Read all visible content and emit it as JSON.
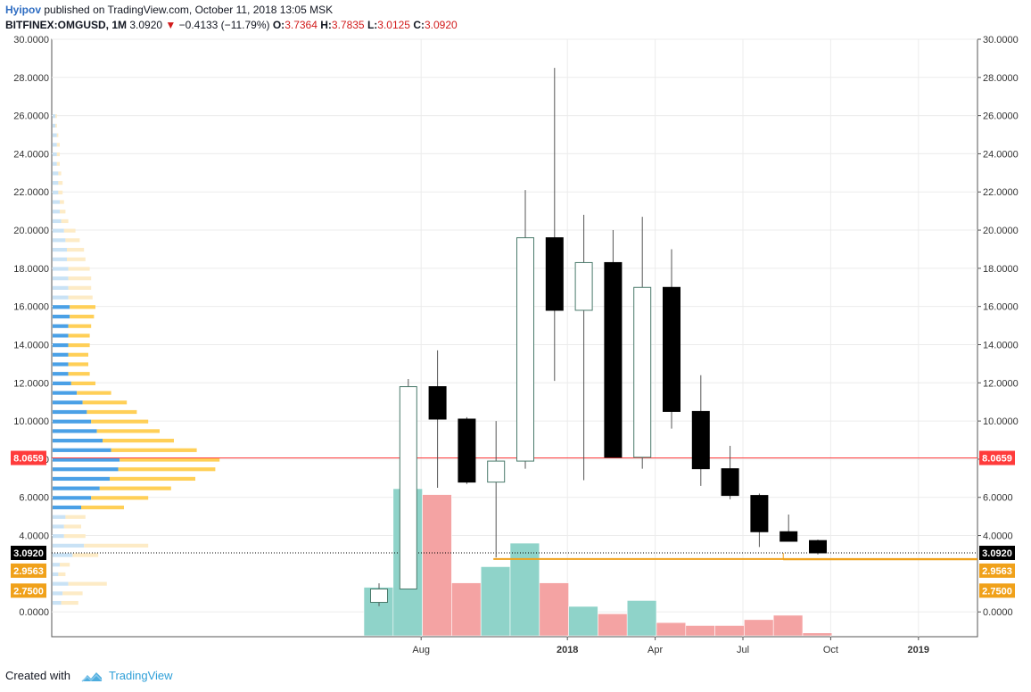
{
  "header": {
    "author": "Hyipov",
    "published": "published on TradingView.com, October 11, 2018 13:05 MSK",
    "symbol": "BITFINEX:OMGUSD, 1M",
    "last": "3.0920",
    "change": "−0.4133 (−11.79%)",
    "o_label": "O:",
    "o_value": "3.7364",
    "h_label": "H:",
    "h_value": "3.7835",
    "l_label": "L:",
    "l_value": "3.0125",
    "c_label": "C:",
    "c_value": "3.0920"
  },
  "footer": {
    "created": "Created with",
    "brand": "TradingView"
  },
  "colors": {
    "up_body": "#ffffff",
    "up_border": "#4a7a6b",
    "down_body": "#000000",
    "vol_up": "#8fd3c9",
    "vol_down": "#f4a3a3",
    "vp_blue": "#4aa0e6",
    "vp_light": "#c9e2f5",
    "vp_orange": "#ffcf57",
    "vp_light_orange": "#fdebc6",
    "poc": "#ff3b3b",
    "support": "#f0a11a",
    "last": "#000000"
  },
  "chart_data": {
    "type": "candlestick",
    "ylim": [
      -1.3,
      30
    ],
    "y_ticks": [
      "30.0000",
      "28.0000",
      "26.0000",
      "24.0000",
      "22.0000",
      "20.0000",
      "18.0000",
      "16.0000",
      "14.0000",
      "12.0000",
      "10.0000",
      "8.0000",
      "6.0000",
      "4.0000",
      "0.0000"
    ],
    "x_ticks": [
      {
        "label": "Aug",
        "bold": false,
        "index": 1
      },
      {
        "label": "2018",
        "bold": true,
        "index": 6
      },
      {
        "label": "Apr",
        "bold": false,
        "index": 9
      },
      {
        "label": "Jul",
        "bold": false,
        "index": 12
      },
      {
        "label": "Oct",
        "bold": false,
        "index": 15
      },
      {
        "label": "2019",
        "bold": true,
        "index": 18
      }
    ],
    "candles": [
      {
        "o": 0.5,
        "h": 1.5,
        "l": 0.3,
        "c": 1.2
      },
      {
        "o": 1.2,
        "h": 12.2,
        "l": 1.2,
        "c": 11.8
      },
      {
        "o": 11.8,
        "h": 13.7,
        "l": 6.5,
        "c": 10.1
      },
      {
        "o": 10.1,
        "h": 10.2,
        "l": 6.7,
        "c": 6.8
      },
      {
        "o": 6.8,
        "h": 10.0,
        "l": 2.85,
        "c": 7.9
      },
      {
        "o": 7.9,
        "h": 22.1,
        "l": 7.5,
        "c": 19.6
      },
      {
        "o": 19.6,
        "h": 28.5,
        "l": 12.1,
        "c": 15.8
      },
      {
        "o": 15.8,
        "h": 20.8,
        "l": 6.9,
        "c": 18.3
      },
      {
        "o": 18.3,
        "h": 20.0,
        "l": 8.1,
        "c": 8.1
      },
      {
        "o": 8.1,
        "h": 20.7,
        "l": 7.5,
        "c": 17.0
      },
      {
        "o": 17.0,
        "h": 19.0,
        "l": 9.6,
        "c": 10.5
      },
      {
        "o": 10.5,
        "h": 12.4,
        "l": 6.6,
        "c": 7.5
      },
      {
        "o": 7.5,
        "h": 8.7,
        "l": 5.9,
        "c": 6.1
      },
      {
        "o": 6.1,
        "h": 6.2,
        "l": 3.4,
        "c": 4.2
      },
      {
        "o": 4.2,
        "h": 5.1,
        "l": 3.7,
        "c": 3.7
      },
      {
        "o": 3.7364,
        "h": 3.7835,
        "l": 3.0125,
        "c": 3.092
      }
    ],
    "volume": [
      {
        "v": 0.33,
        "dir": "up"
      },
      {
        "v": 1.0,
        "dir": "up"
      },
      {
        "v": 0.96,
        "dir": "down"
      },
      {
        "v": 0.36,
        "dir": "down"
      },
      {
        "v": 0.47,
        "dir": "up"
      },
      {
        "v": 0.63,
        "dir": "up"
      },
      {
        "v": 0.36,
        "dir": "down"
      },
      {
        "v": 0.2,
        "dir": "up"
      },
      {
        "v": 0.15,
        "dir": "down"
      },
      {
        "v": 0.24,
        "dir": "up"
      },
      {
        "v": 0.09,
        "dir": "down"
      },
      {
        "v": 0.07,
        "dir": "down"
      },
      {
        "v": 0.07,
        "dir": "down"
      },
      {
        "v": 0.11,
        "dir": "down"
      },
      {
        "v": 0.14,
        "dir": "down"
      },
      {
        "v": 0.02,
        "dir": "down"
      }
    ],
    "levels": {
      "poc": {
        "value": 8.0659,
        "label": "8.0659"
      },
      "last": {
        "value": 3.092,
        "label": "3.0920"
      },
      "support_high": {
        "value": 2.9563,
        "label": "2.9563"
      },
      "support_low": {
        "value": 2.75,
        "label": "2.7500"
      }
    },
    "volume_profile": [
      {
        "p": 26.0,
        "a": 0.02,
        "b": 0.01,
        "hl": false
      },
      {
        "p": 25.5,
        "a": 0.02,
        "b": 0.01,
        "hl": false
      },
      {
        "p": 25.0,
        "a": 0.03,
        "b": 0.01,
        "hl": false
      },
      {
        "p": 24.5,
        "a": 0.03,
        "b": 0.02,
        "hl": false
      },
      {
        "p": 24.0,
        "a": 0.03,
        "b": 0.02,
        "hl": false
      },
      {
        "p": 23.5,
        "a": 0.03,
        "b": 0.02,
        "hl": false
      },
      {
        "p": 23.0,
        "a": 0.04,
        "b": 0.02,
        "hl": false
      },
      {
        "p": 22.5,
        "a": 0.04,
        "b": 0.03,
        "hl": false
      },
      {
        "p": 22.0,
        "a": 0.04,
        "b": 0.03,
        "hl": false
      },
      {
        "p": 21.5,
        "a": 0.05,
        "b": 0.03,
        "hl": false
      },
      {
        "p": 21.0,
        "a": 0.05,
        "b": 0.04,
        "hl": false
      },
      {
        "p": 20.5,
        "a": 0.06,
        "b": 0.05,
        "hl": false
      },
      {
        "p": 20.0,
        "a": 0.08,
        "b": 0.08,
        "hl": false
      },
      {
        "p": 19.5,
        "a": 0.09,
        "b": 0.1,
        "hl": false
      },
      {
        "p": 19.0,
        "a": 0.1,
        "b": 0.12,
        "hl": false
      },
      {
        "p": 18.5,
        "a": 0.1,
        "b": 0.13,
        "hl": false
      },
      {
        "p": 18.0,
        "a": 0.11,
        "b": 0.15,
        "hl": false
      },
      {
        "p": 17.5,
        "a": 0.11,
        "b": 0.16,
        "hl": false
      },
      {
        "p": 17.0,
        "a": 0.11,
        "b": 0.16,
        "hl": false
      },
      {
        "p": 16.5,
        "a": 0.11,
        "b": 0.17,
        "hl": false
      },
      {
        "p": 16.0,
        "a": 0.12,
        "b": 0.18,
        "hl": true
      },
      {
        "p": 15.5,
        "a": 0.12,
        "b": 0.17,
        "hl": true
      },
      {
        "p": 15.0,
        "a": 0.11,
        "b": 0.16,
        "hl": true
      },
      {
        "p": 14.5,
        "a": 0.11,
        "b": 0.15,
        "hl": true
      },
      {
        "p": 14.0,
        "a": 0.11,
        "b": 0.15,
        "hl": true
      },
      {
        "p": 13.5,
        "a": 0.11,
        "b": 0.14,
        "hl": true
      },
      {
        "p": 13.0,
        "a": 0.11,
        "b": 0.14,
        "hl": true
      },
      {
        "p": 12.5,
        "a": 0.11,
        "b": 0.15,
        "hl": true
      },
      {
        "p": 12.0,
        "a": 0.13,
        "b": 0.17,
        "hl": true
      },
      {
        "p": 11.5,
        "a": 0.17,
        "b": 0.24,
        "hl": true
      },
      {
        "p": 11.0,
        "a": 0.21,
        "b": 0.31,
        "hl": true
      },
      {
        "p": 10.5,
        "a": 0.24,
        "b": 0.35,
        "hl": true
      },
      {
        "p": 10.0,
        "a": 0.27,
        "b": 0.4,
        "hl": true
      },
      {
        "p": 9.5,
        "a": 0.31,
        "b": 0.44,
        "hl": true
      },
      {
        "p": 9.0,
        "a": 0.35,
        "b": 0.5,
        "hl": true
      },
      {
        "p": 8.5,
        "a": 0.41,
        "b": 0.6,
        "hl": true
      },
      {
        "p": 8.0,
        "a": 0.47,
        "b": 0.7,
        "hl": true
      },
      {
        "p": 7.5,
        "a": 0.46,
        "b": 0.68,
        "hl": true
      },
      {
        "p": 7.0,
        "a": 0.4,
        "b": 0.6,
        "hl": true
      },
      {
        "p": 6.5,
        "a": 0.33,
        "b": 0.5,
        "hl": true
      },
      {
        "p": 6.0,
        "a": 0.27,
        "b": 0.4,
        "hl": true
      },
      {
        "p": 5.5,
        "a": 0.2,
        "b": 0.3,
        "hl": true
      },
      {
        "p": 5.0,
        "a": 0.09,
        "b": 0.14,
        "hl": false
      },
      {
        "p": 4.5,
        "a": 0.08,
        "b": 0.12,
        "hl": false
      },
      {
        "p": 4.0,
        "a": 0.08,
        "b": 0.15,
        "hl": false
      },
      {
        "p": 3.5,
        "a": 0.22,
        "b": 0.45,
        "hl": false
      },
      {
        "p": 3.0,
        "a": 0.14,
        "b": 0.18,
        "hl": false
      },
      {
        "p": 2.5,
        "a": 0.05,
        "b": 0.07,
        "hl": false
      },
      {
        "p": 2.0,
        "a": 0.04,
        "b": 0.05,
        "hl": false
      },
      {
        "p": 1.5,
        "a": 0.11,
        "b": 0.27,
        "hl": false
      },
      {
        "p": 1.0,
        "a": 0.07,
        "b": 0.14,
        "hl": false
      },
      {
        "p": 0.5,
        "a": 0.06,
        "b": 0.12,
        "hl": false
      }
    ]
  }
}
